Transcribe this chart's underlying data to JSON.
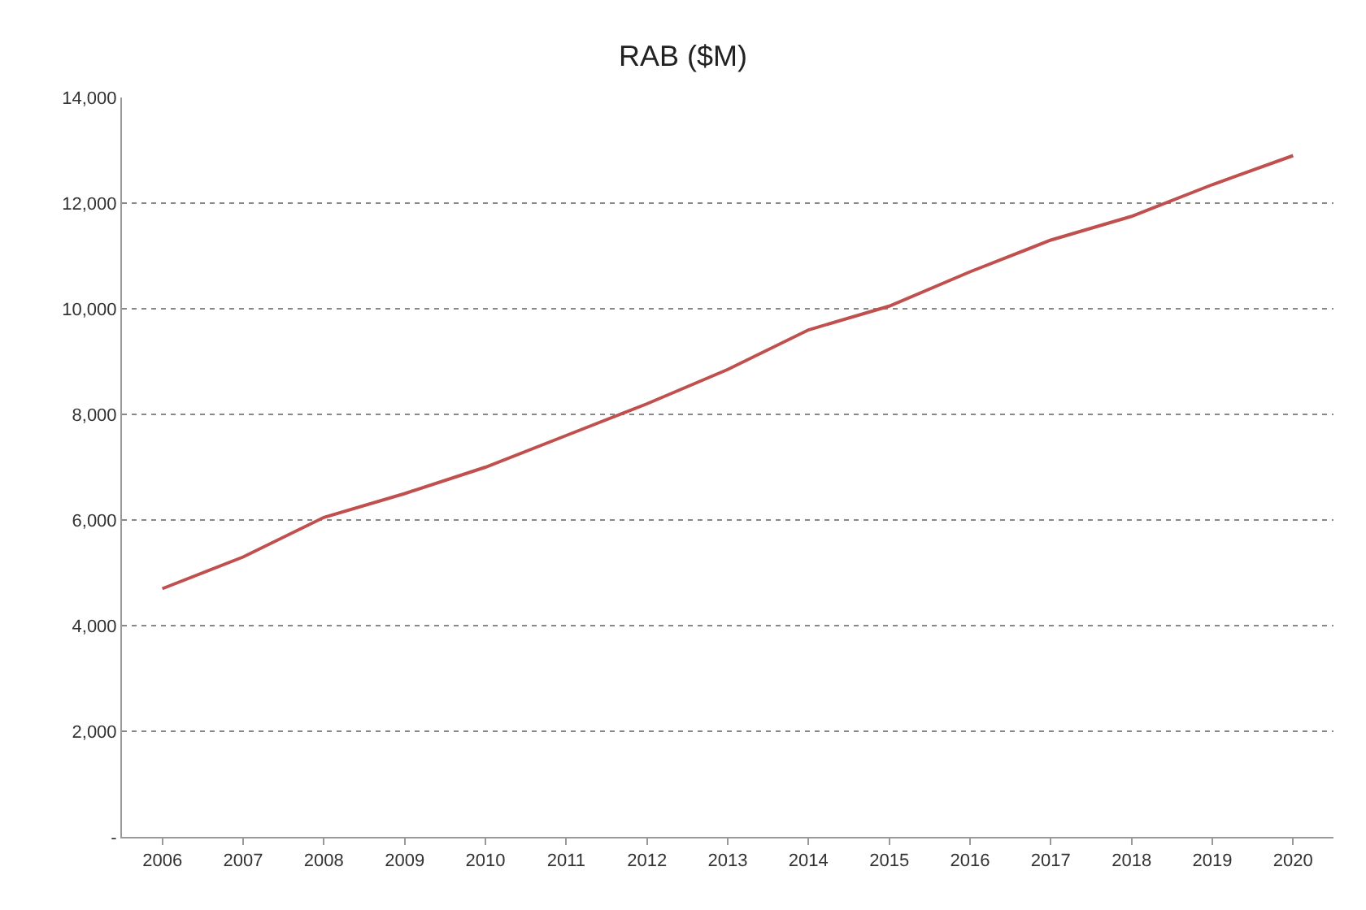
{
  "chart_data": {
    "type": "line",
    "title": "RAB ($M)",
    "categories": [
      "2006",
      "2007",
      "2008",
      "2009",
      "2010",
      "2011",
      "2012",
      "2013",
      "2014",
      "2015",
      "2016",
      "2017",
      "2018",
      "2019",
      "2020"
    ],
    "series": [
      {
        "color": "#c0504d",
        "values": [
          4700,
          5300,
          6050,
          6500,
          7000,
          7600,
          8200,
          8850,
          9600,
          10050,
          10700,
          11300,
          11750,
          12350,
          12900
        ]
      }
    ],
    "ylim": [
      0,
      14000
    ],
    "yticks": [
      {
        "value": 0,
        "label": "-"
      },
      {
        "value": 2000,
        "label": "2,000"
      },
      {
        "value": 4000,
        "label": "4,000"
      },
      {
        "value": 6000,
        "label": "6,000"
      },
      {
        "value": 8000,
        "label": "8,000"
      },
      {
        "value": 10000,
        "label": "10,000"
      },
      {
        "value": 12000,
        "label": "12,000"
      },
      {
        "value": 14000,
        "label": "14,000"
      }
    ],
    "grid": "y",
    "marker": "none",
    "line_style": "solid"
  }
}
